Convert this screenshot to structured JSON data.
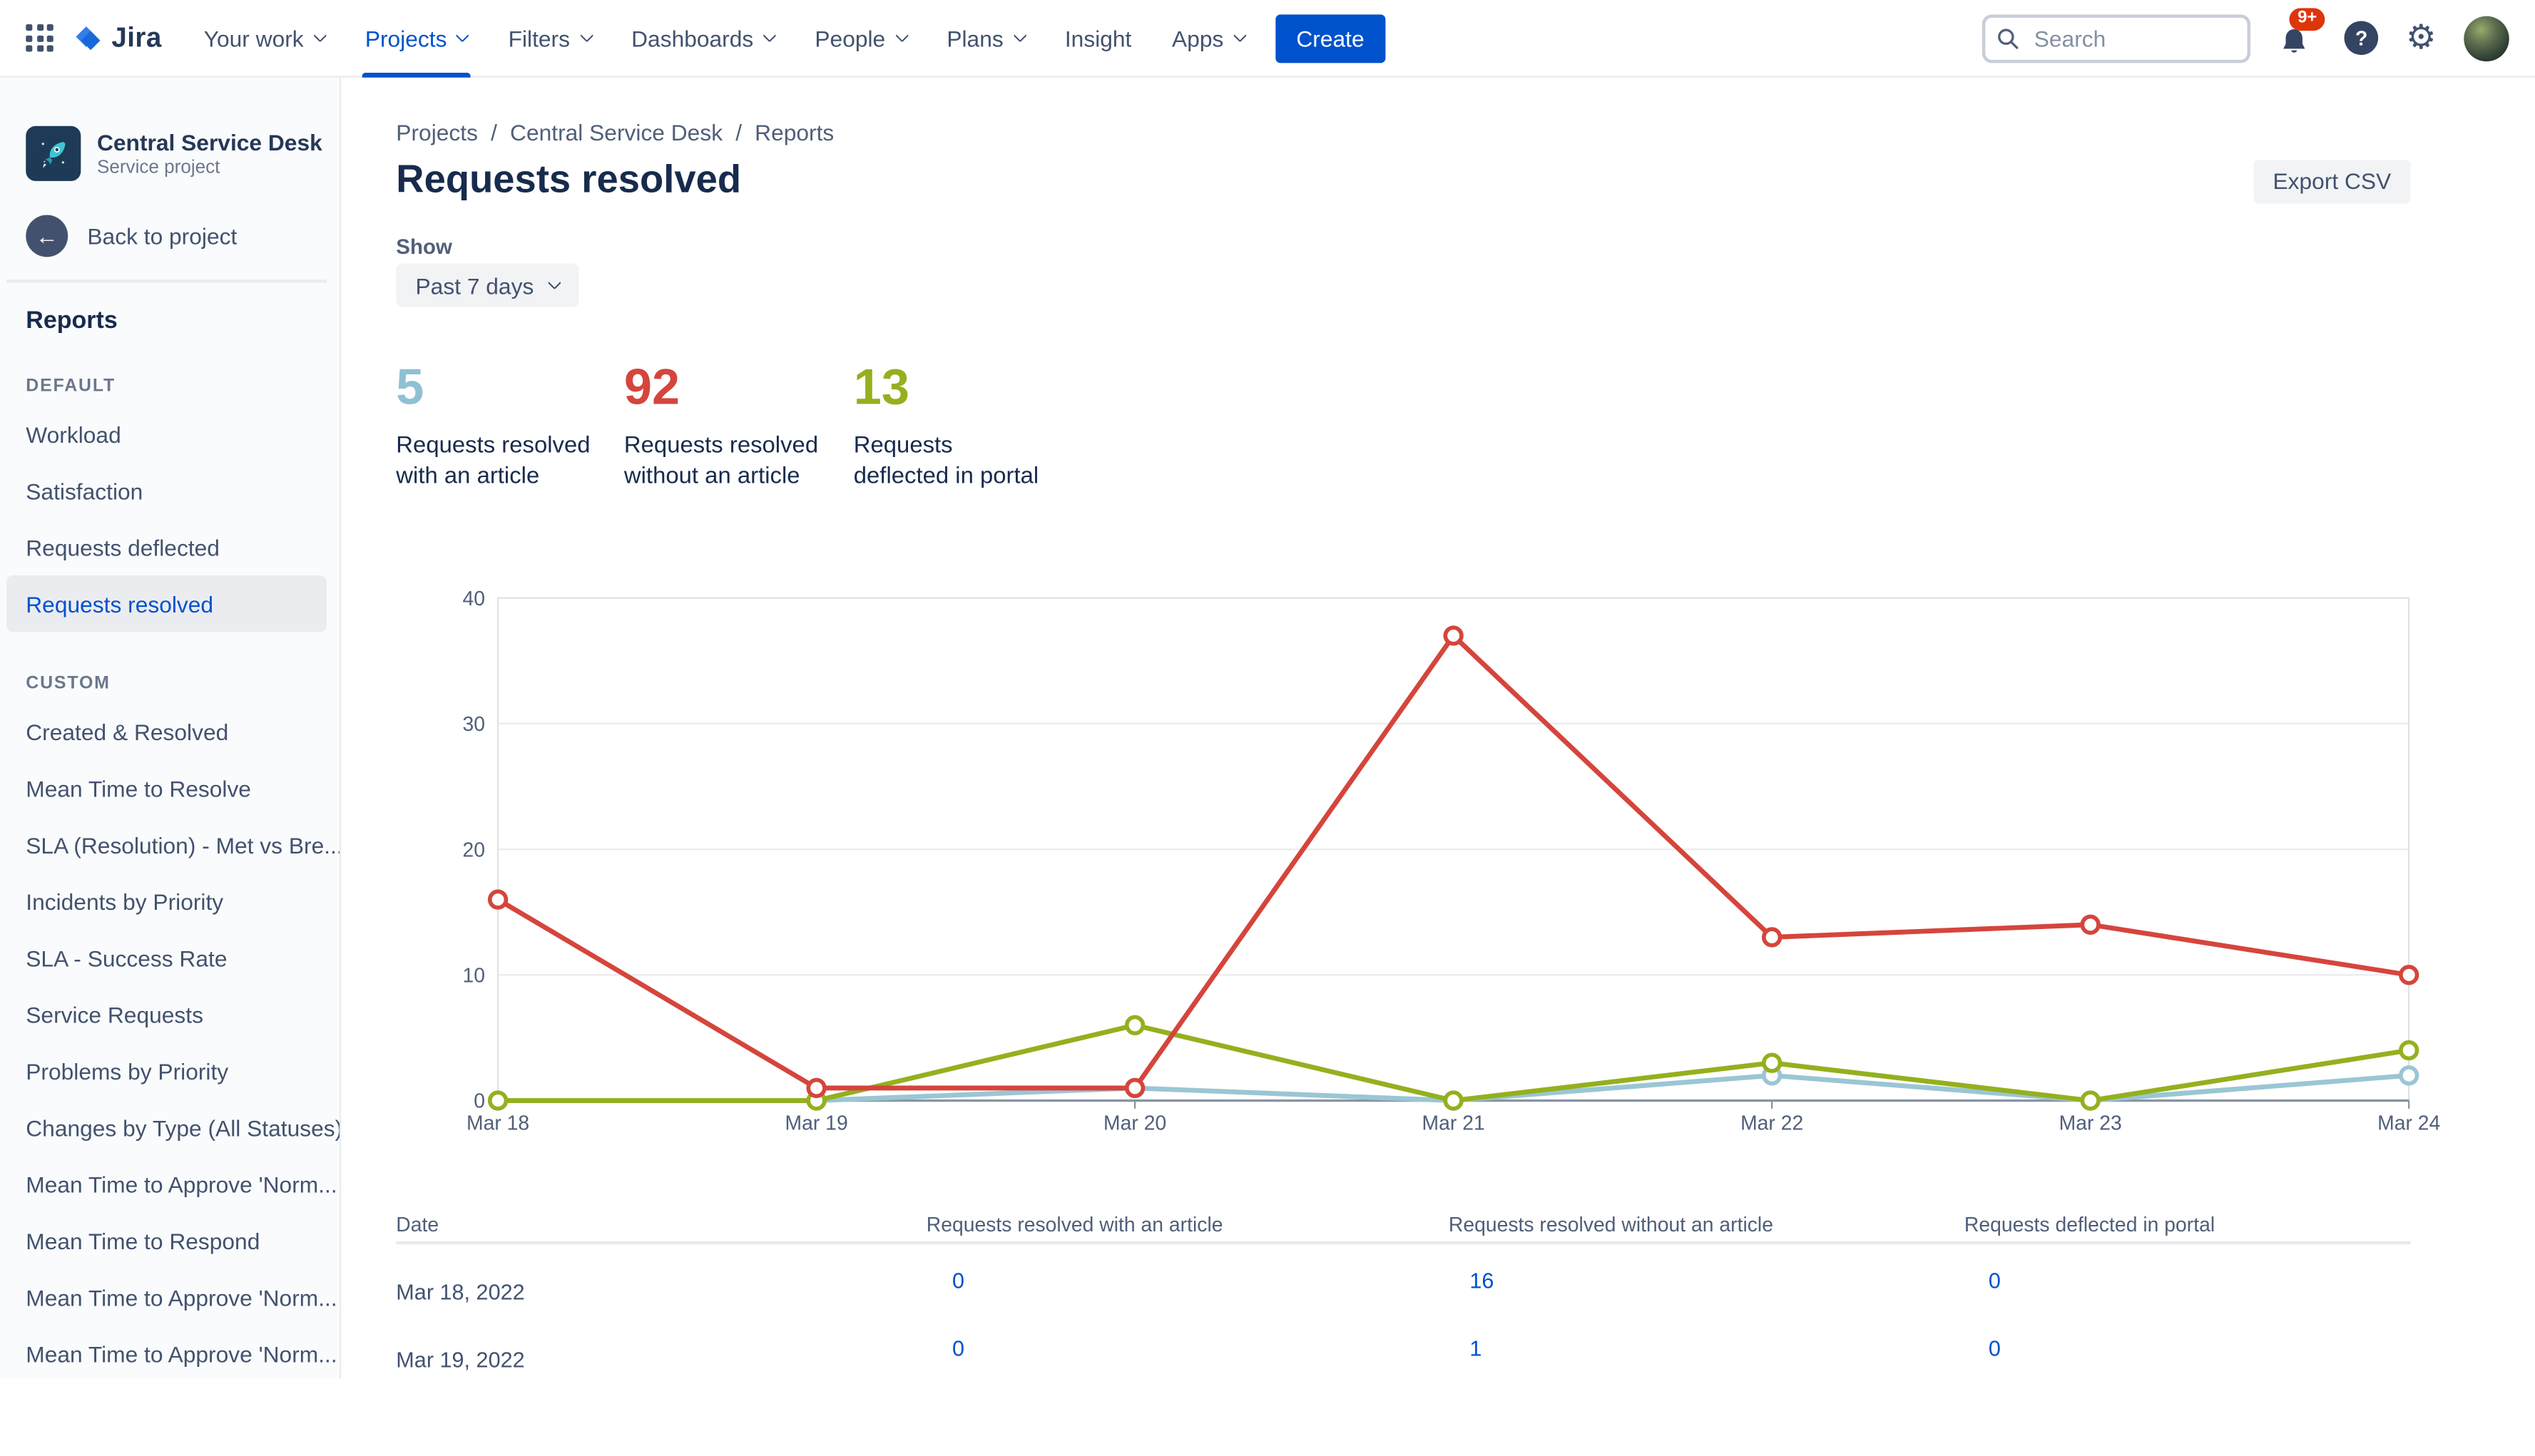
{
  "colors": {
    "accent": "#0052CC",
    "badge": "#DE350B"
  },
  "icons": {
    "app_switcher": "grid-3x3-dots",
    "logo": "jira-diamond",
    "search": "magnifier",
    "notifications": "bell",
    "help": "question-circle",
    "settings": "gear",
    "back": "arrow-left-circle",
    "project": "rocket",
    "dropdown": "chevron-down"
  },
  "nav": {
    "brand": "Jira",
    "items": [
      {
        "label": "Your work",
        "chevron": true,
        "active": false
      },
      {
        "label": "Projects",
        "chevron": true,
        "active": true
      },
      {
        "label": "Filters",
        "chevron": true,
        "active": false
      },
      {
        "label": "Dashboards",
        "chevron": true,
        "active": false
      },
      {
        "label": "People",
        "chevron": true,
        "active": false
      },
      {
        "label": "Plans",
        "chevron": true,
        "active": false
      },
      {
        "label": "Insight",
        "chevron": false,
        "active": false
      },
      {
        "label": "Apps",
        "chevron": true,
        "active": false
      }
    ],
    "create_label": "Create",
    "search_placeholder": "Search",
    "notifications_badge": "9+",
    "help_glyph": "?",
    "settings_glyph": "⚙",
    "back_glyph": "←"
  },
  "sidebar": {
    "project": {
      "name": "Central Service Desk",
      "type": "Service project"
    },
    "back_label": "Back to project",
    "heading": "Reports",
    "groups": [
      {
        "title": "DEFAULT",
        "items": [
          {
            "label": "Workload",
            "selected": false
          },
          {
            "label": "Satisfaction",
            "selected": false
          },
          {
            "label": "Requests deflected",
            "selected": false
          },
          {
            "label": "Requests resolved",
            "selected": true
          }
        ]
      },
      {
        "title": "CUSTOM",
        "items": [
          {
            "label": "Created & Resolved",
            "selected": false
          },
          {
            "label": "Mean Time to Resolve",
            "selected": false
          },
          {
            "label": "SLA (Resolution) - Met vs Bre...",
            "selected": false
          },
          {
            "label": "Incidents by Priority",
            "selected": false
          },
          {
            "label": "SLA - Success Rate",
            "selected": false
          },
          {
            "label": "Service Requests",
            "selected": false
          },
          {
            "label": "Problems by Priority",
            "selected": false
          },
          {
            "label": "Changes by Type (All Statuses)",
            "selected": false
          },
          {
            "label": "Mean Time to Approve 'Norm...",
            "selected": false
          },
          {
            "label": "Mean Time to Respond",
            "selected": false
          },
          {
            "label": "Mean Time to Approve 'Norm...",
            "selected": false
          },
          {
            "label": "Mean Time to Approve 'Norm...",
            "selected": false
          }
        ]
      }
    ]
  },
  "breadcrumb": {
    "items": [
      "Projects",
      "Central Service Desk",
      "Reports"
    ],
    "separator": "/"
  },
  "page": {
    "title": "Requests resolved",
    "export_label": "Export CSV",
    "show_label": "Show",
    "range_value": "Past 7 days"
  },
  "stats": [
    {
      "value": "5",
      "label": "Requests resolved\nwith an article",
      "color": "#8FC0D3"
    },
    {
      "value": "92",
      "label": "Requests resolved\nwithout an article",
      "color": "#D5453C"
    },
    {
      "value": "13",
      "label": "Requests\ndeflected in portal",
      "color": "#94B01E"
    }
  ],
  "chart_data": {
    "type": "line",
    "title": "Requests resolved - past 7 days",
    "x": [
      "Mar 18",
      "Mar 19",
      "Mar 20",
      "Mar 21",
      "Mar 22",
      "Mar 23",
      "Mar 24"
    ],
    "series": [
      {
        "name": "Requests resolved with an article",
        "color": "#9AC6D4",
        "values": [
          0,
          0,
          1,
          0,
          2,
          0,
          2
        ]
      },
      {
        "name": "Requests deflected in portal",
        "color": "#94B01E",
        "values": [
          0,
          0,
          6,
          0,
          3,
          0,
          4
        ]
      },
      {
        "name": "Requests resolved without an article",
        "color": "#D5453C",
        "values": [
          16,
          1,
          1,
          37,
          13,
          14,
          10
        ]
      }
    ],
    "ylim": [
      0,
      40
    ],
    "yticks": [
      0,
      10,
      20,
      30,
      40
    ],
    "grid": true,
    "legend": "none"
  },
  "table": {
    "columns": [
      "Date",
      "Requests resolved with an article",
      "Requests resolved without an article",
      "Requests deflected in portal"
    ],
    "rows": [
      {
        "date": "Mar 18, 2022",
        "values": [
          "0",
          "16",
          "0"
        ]
      },
      {
        "date": "Mar 19, 2022",
        "values": [
          "0",
          "1",
          "0"
        ]
      }
    ]
  }
}
